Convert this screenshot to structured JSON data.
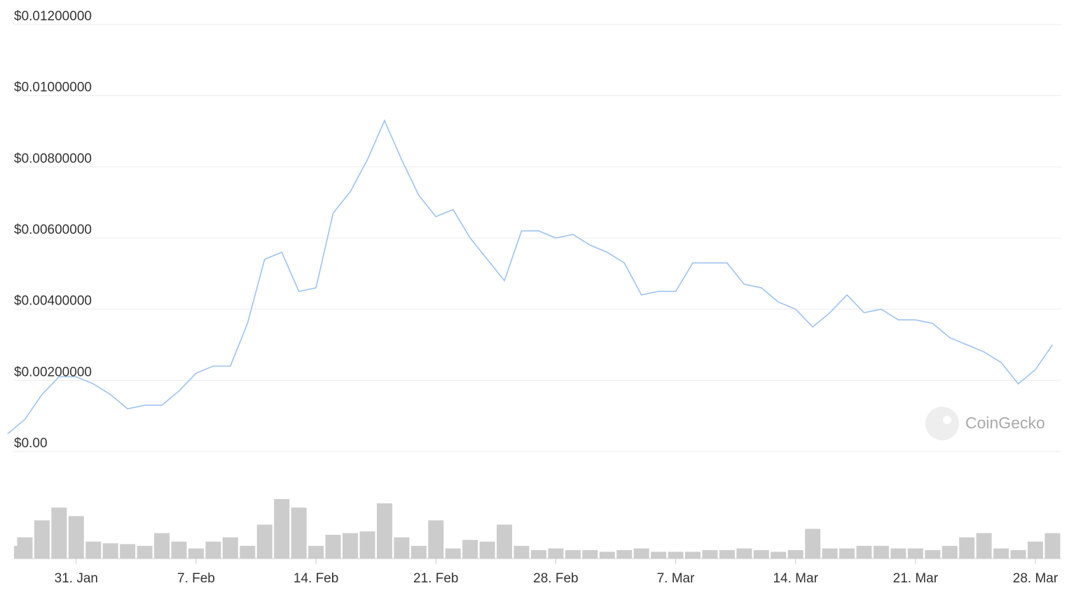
{
  "chart_data": {
    "type": "line",
    "x": [
      "27. Jan",
      "28. Jan",
      "29. Jan",
      "30. Jan",
      "31. Jan",
      "1. Feb",
      "2. Feb",
      "3. Feb",
      "4. Feb",
      "5. Feb",
      "6. Feb",
      "7. Feb",
      "8. Feb",
      "9. Feb",
      "10. Feb",
      "11. Feb",
      "12. Feb",
      "13. Feb",
      "14. Feb",
      "15. Feb",
      "16. Feb",
      "17. Feb",
      "18. Feb",
      "19. Feb",
      "20. Feb",
      "21. Feb",
      "22. Feb",
      "23. Feb",
      "24. Feb",
      "25. Feb",
      "26. Feb",
      "27. Feb",
      "28. Feb",
      "1. Mar",
      "2. Mar",
      "3. Mar",
      "4. Mar",
      "5. Mar",
      "6. Mar",
      "7. Mar",
      "8. Mar",
      "9. Mar",
      "10. Mar",
      "11. Mar",
      "12. Mar",
      "13. Mar",
      "14. Mar",
      "15. Mar",
      "16. Mar",
      "17. Mar",
      "18. Mar",
      "19. Mar",
      "20. Mar",
      "21. Mar",
      "22. Mar",
      "23. Mar",
      "24. Mar",
      "25. Mar",
      "26. Mar",
      "27. Mar",
      "28. Mar",
      "29. Mar"
    ],
    "values": [
      0.0005,
      0.0009,
      0.0016,
      0.0021,
      0.0021,
      0.0019,
      0.0016,
      0.0012,
      0.0013,
      0.0013,
      0.0017,
      0.0022,
      0.0024,
      0.0024,
      0.0036,
      0.0054,
      0.0056,
      0.0045,
      0.0046,
      0.0067,
      0.0073,
      0.0082,
      0.0093,
      0.0082,
      0.0072,
      0.0066,
      0.0068,
      0.006,
      0.0054,
      0.0048,
      0.0062,
      0.0062,
      0.006,
      0.0061,
      0.0058,
      0.0056,
      0.0053,
      0.0044,
      0.0045,
      0.0045,
      0.0053,
      0.0053,
      0.0053,
      0.0047,
      0.0046,
      0.0042,
      0.004,
      0.0035,
      0.0039,
      0.0044,
      0.0039,
      0.004,
      0.0037,
      0.0037,
      0.0036,
      0.0032,
      0.003,
      0.0028,
      0.0025,
      0.0019,
      0.0023,
      0.003
    ],
    "color": "#9ec3ef",
    "volume_values": [
      15,
      25,
      45,
      60,
      50,
      20,
      18,
      17,
      15,
      30,
      20,
      12,
      20,
      25,
      15,
      40,
      70,
      60,
      15,
      28,
      30,
      32,
      65,
      25,
      15,
      45,
      12,
      22,
      20,
      40,
      15,
      10,
      12,
      10,
      10,
      8,
      10,
      12,
      8,
      8,
      8,
      10,
      10,
      12,
      10,
      8,
      10,
      35,
      12,
      12,
      15,
      15,
      12,
      12,
      10,
      15,
      25,
      30,
      12,
      10,
      20,
      30
    ],
    "volume_color": "#cccccc",
    "ylim": [
      0,
      0.012
    ],
    "yticks": [
      {
        "value": 0,
        "label": "$0.00"
      },
      {
        "value": 0.002,
        "label": "$0.00200000"
      },
      {
        "value": 0.004,
        "label": "$0.00400000"
      },
      {
        "value": 0.006,
        "label": "$0.00600000"
      },
      {
        "value": 0.008,
        "label": "$0.00800000"
      },
      {
        "value": 0.01,
        "label": "$0.01000000"
      },
      {
        "value": 0.012,
        "label": "$0.01200000"
      }
    ],
    "xticks": [
      "31. Jan",
      "7. Feb",
      "14. Feb",
      "21. Feb",
      "28. Feb",
      "7. Mar",
      "14. Mar",
      "21. Mar",
      "28. Mar"
    ],
    "grid": true,
    "watermark": "CoinGecko"
  }
}
